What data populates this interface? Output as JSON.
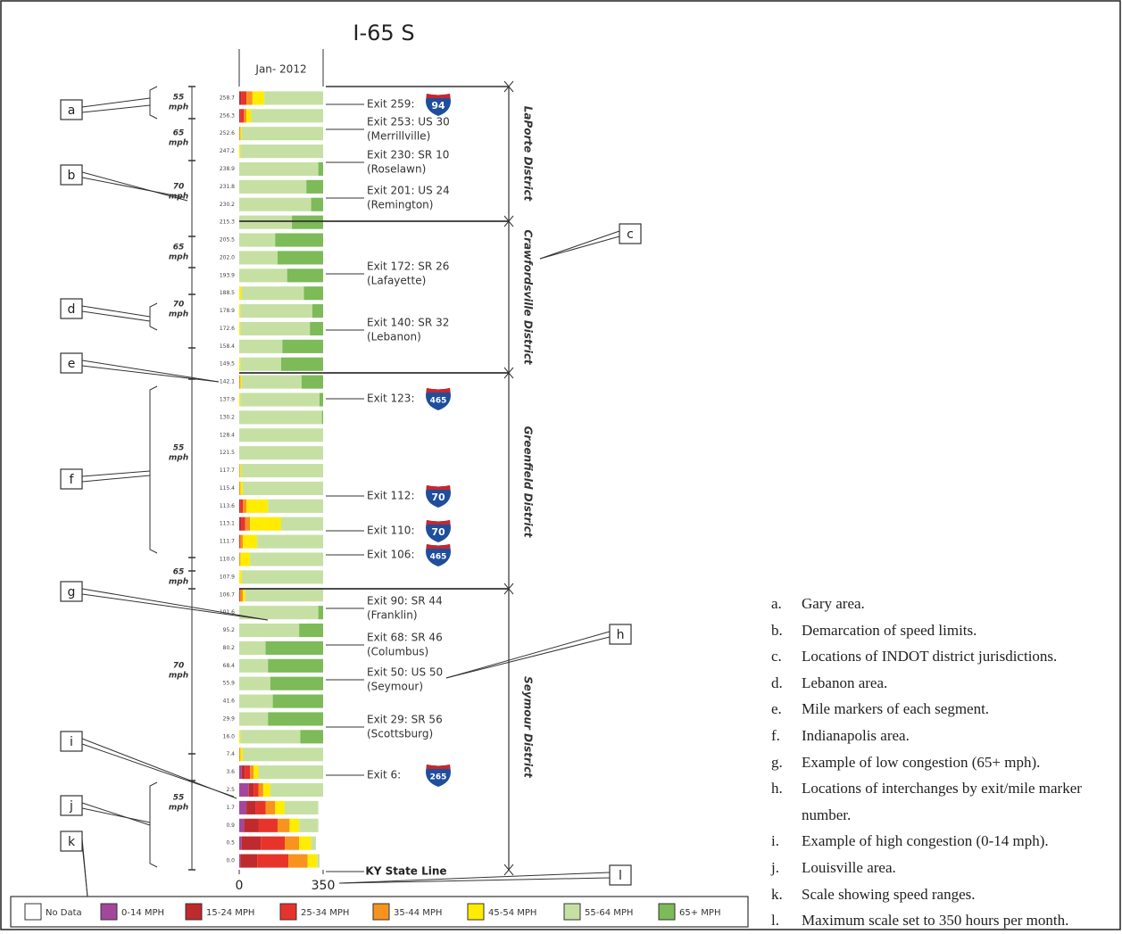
{
  "chart_data": {
    "type": "bar",
    "orientation": "horizontal",
    "stacked": true,
    "title": "I-65 S",
    "column_label": "Jan- 2012",
    "categories": [
      "258.7",
      "256.3",
      "252.6",
      "247.2",
      "238.9",
      "231.8",
      "230.2",
      "215.3",
      "205.5",
      "202.0",
      "193.9",
      "188.5",
      "178.9",
      "172.6",
      "158.4",
      "149.5",
      "142.1",
      "137.9",
      "130.2",
      "128.4",
      "121.5",
      "117.7",
      "115.4",
      "113.6",
      "113.1",
      "111.7",
      "110.0",
      "107.9",
      "106.7",
      "101.6",
      "95.2",
      "80.2",
      "68.4",
      "55.9",
      "41.6",
      "29.9",
      "16.0",
      "7.4",
      "3.6",
      "2.5",
      "1.7",
      "0.9",
      "0.5",
      "0.0"
    ],
    "series": [
      {
        "name": "No Data",
        "color": "#ffffff",
        "values": [
          0,
          0,
          0,
          0,
          0,
          0,
          0,
          0,
          0,
          0,
          0,
          0,
          0,
          0,
          0,
          0,
          0,
          0,
          0,
          0,
          0,
          0,
          0,
          0,
          0,
          0,
          0,
          0,
          0,
          0,
          0,
          0,
          0,
          0,
          0,
          0,
          0,
          0,
          0,
          0,
          0,
          0,
          0,
          0
        ]
      },
      {
        "name": "0-14 MPH",
        "color": "#a3479c",
        "values": [
          0,
          0,
          0,
          0,
          0,
          0,
          0,
          0,
          0,
          0,
          0,
          0,
          0,
          0,
          0,
          0,
          0,
          0,
          0,
          0,
          0,
          0,
          0,
          0,
          0,
          0,
          0,
          0,
          0,
          0,
          0,
          0,
          0,
          0,
          0,
          0,
          0,
          0,
          10,
          40,
          30,
          20,
          10,
          5
        ]
      },
      {
        "name": "15-24 MPH",
        "color": "#bf2a2c",
        "values": [
          10,
          5,
          0,
          0,
          0,
          0,
          0,
          0,
          0,
          0,
          0,
          0,
          0,
          0,
          0,
          0,
          0,
          0,
          0,
          0,
          0,
          0,
          0,
          5,
          10,
          0,
          0,
          0,
          0,
          0,
          0,
          0,
          0,
          0,
          0,
          0,
          0,
          0,
          15,
          20,
          40,
          60,
          80,
          70
        ]
      },
      {
        "name": "25-34 MPH",
        "color": "#e8332a",
        "values": [
          20,
          15,
          0,
          0,
          0,
          0,
          0,
          0,
          0,
          0,
          0,
          0,
          0,
          0,
          0,
          0,
          0,
          0,
          0,
          0,
          0,
          0,
          0,
          10,
          15,
          5,
          0,
          0,
          5,
          0,
          0,
          0,
          0,
          0,
          0,
          0,
          0,
          0,
          20,
          20,
          40,
          80,
          100,
          130
        ]
      },
      {
        "name": "35-44 MPH",
        "color": "#f7931e",
        "values": [
          25,
          10,
          5,
          0,
          0,
          0,
          0,
          0,
          0,
          0,
          0,
          0,
          0,
          0,
          0,
          0,
          5,
          0,
          0,
          0,
          0,
          3,
          5,
          15,
          20,
          10,
          5,
          0,
          10,
          0,
          0,
          0,
          0,
          0,
          0,
          0,
          0,
          5,
          15,
          20,
          40,
          50,
          60,
          80
        ]
      },
      {
        "name": "45-54 MPH",
        "color": "#ffec00",
        "values": [
          50,
          20,
          5,
          5,
          0,
          0,
          0,
          0,
          0,
          0,
          0,
          10,
          5,
          5,
          0,
          5,
          5,
          5,
          0,
          0,
          0,
          5,
          10,
          90,
          130,
          60,
          40,
          10,
          10,
          0,
          0,
          0,
          0,
          0,
          0,
          0,
          5,
          10,
          20,
          30,
          40,
          40,
          50,
          40
        ]
      },
      {
        "name": "55-64 MPH",
        "color": "#c6e0a4",
        "values": [
          245,
          300,
          340,
          345,
          330,
          280,
          300,
          220,
          150,
          160,
          200,
          260,
          300,
          290,
          180,
          170,
          250,
          330,
          345,
          350,
          350,
          342,
          335,
          230,
          175,
          275,
          305,
          340,
          325,
          330,
          250,
          110,
          120,
          130,
          140,
          120,
          250,
          335,
          270,
          220,
          140,
          80,
          20,
          10
        ]
      },
      {
        "name": "65+ MPH",
        "color": "#7dba58",
        "values": [
          0,
          0,
          0,
          0,
          20,
          70,
          50,
          130,
          200,
          190,
          150,
          80,
          45,
          55,
          170,
          175,
          90,
          15,
          5,
          0,
          0,
          0,
          0,
          0,
          0,
          0,
          0,
          0,
          0,
          20,
          100,
          240,
          230,
          220,
          210,
          230,
          95,
          0,
          0,
          0,
          0,
          0,
          0,
          0
        ]
      }
    ],
    "xlim": [
      0,
      350
    ],
    "xticks": [
      0,
      350
    ],
    "end_label": "KY State Line",
    "districts": [
      "LaPorte District",
      "Crawfordsville District",
      "Greenfield District",
      "Seymour District"
    ],
    "speed_limits": [
      {
        "limit": 55,
        "unit": "mph"
      },
      {
        "limit": 65,
        "unit": "mph"
      },
      {
        "limit": 70,
        "unit": "mph"
      },
      {
        "limit": 65,
        "unit": "mph"
      },
      {
        "limit": 70,
        "unit": "mph"
      },
      {
        "limit": 55,
        "unit": "mph"
      },
      {
        "limit": 65,
        "unit": "mph"
      },
      {
        "limit": 70,
        "unit": "mph"
      },
      {
        "limit": 55,
        "unit": "mph"
      }
    ],
    "exits": [
      {
        "label": "Exit 259:",
        "shield": 94
      },
      {
        "label": "Exit 253: US 30",
        "place": "(Merrillville)"
      },
      {
        "label": "Exit 230: SR 10",
        "place": "(Roselawn)"
      },
      {
        "label": "Exit 201: US 24",
        "place": "(Remington)"
      },
      {
        "label": "Exit 172: SR 26",
        "place": "(Lafayette)"
      },
      {
        "label": "Exit 140: SR 32",
        "place": "(Lebanon)"
      },
      {
        "label": "Exit 123:",
        "shield": 465
      },
      {
        "label": "Exit 112:",
        "shield": 70
      },
      {
        "label": "Exit 110:",
        "shield": 70
      },
      {
        "label": "Exit 106:",
        "shield": 465
      },
      {
        "label": "Exit 90: SR 44",
        "place": "(Franklin)"
      },
      {
        "label": "Exit 68: SR 46",
        "place": "(Columbus)"
      },
      {
        "label": "Exit 50: US 50",
        "place": "(Seymour)"
      },
      {
        "label": "Exit 29: SR 56",
        "place": "(Scottsburg)"
      },
      {
        "label": "Exit 6:",
        "shield": 265
      }
    ],
    "callouts": [
      "a",
      "b",
      "c",
      "d",
      "e",
      "f",
      "g",
      "h",
      "i",
      "j",
      "k",
      "l"
    ]
  },
  "key": [
    {
      "letter": "a.",
      "text": "Gary area."
    },
    {
      "letter": "b.",
      "text": "Demarcation of speed limits."
    },
    {
      "letter": "c.",
      "text": "Locations of INDOT district jurisdictions."
    },
    {
      "letter": "d.",
      "text": "Lebanon area."
    },
    {
      "letter": "e.",
      "text": "Mile markers of each segment."
    },
    {
      "letter": "f.",
      "text": "Indianapolis area."
    },
    {
      "letter": "g.",
      "text": "Example of low congestion (65+ mph)."
    },
    {
      "letter": "h.",
      "text": "Locations of interchanges by exit/mile marker number."
    },
    {
      "letter": "i.",
      "text": "Example of high congestion (0-14 mph)."
    },
    {
      "letter": "j.",
      "text": "Louisville area."
    },
    {
      "letter": "k.",
      "text": "Scale showing speed ranges."
    },
    {
      "letter": "l.",
      "text": "Maximum scale set to 350 hours per month."
    }
  ]
}
